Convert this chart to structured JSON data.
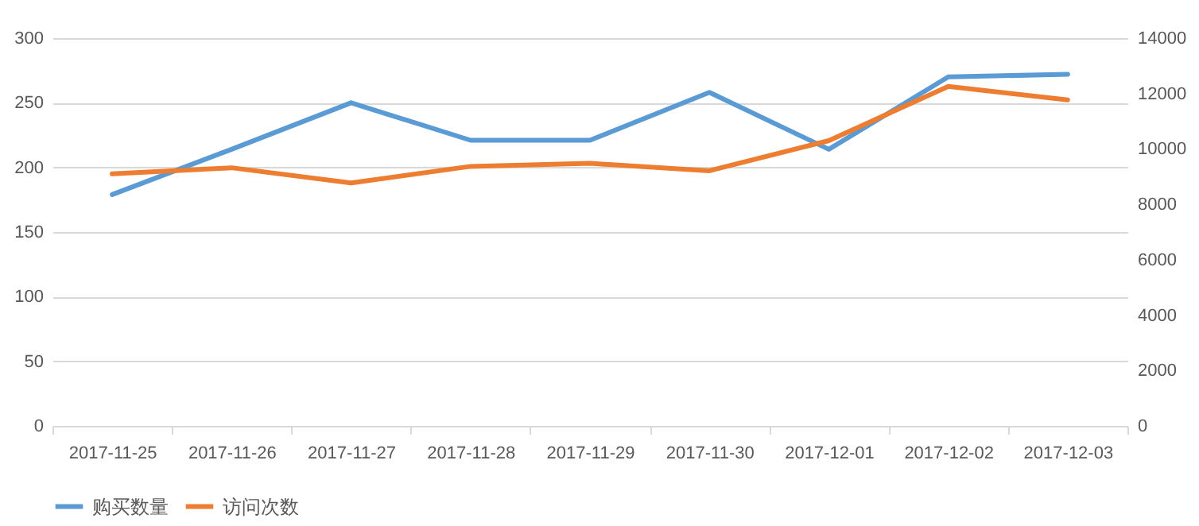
{
  "chart_data": {
    "type": "line",
    "categories": [
      "2017-11-25",
      "2017-11-26",
      "2017-11-27",
      "2017-11-28",
      "2017-11-29",
      "2017-11-30",
      "2017-12-01",
      "2017-12-02",
      "2017-12-03"
    ],
    "series": [
      {
        "name": "购买数量",
        "color": "#5b9bd5",
        "values": [
          179,
          214,
          250,
          221,
          221,
          258,
          214,
          270,
          272
        ]
      },
      {
        "name": "访问次数",
        "color": "#ed7d31",
        "axis": "y2",
        "values": [
          9100,
          9320,
          8770,
          9370,
          9480,
          9210,
          10300,
          12260,
          11770
        ]
      }
    ],
    "ylim": [
      0,
      300
    ],
    "yticks": [
      0,
      50,
      100,
      150,
      200,
      250,
      300
    ],
    "y2lim": [
      0,
      14000
    ],
    "y2ticks": [
      0,
      2000,
      4000,
      6000,
      8000,
      10000,
      12000,
      14000
    ],
    "grid": "y",
    "legend": "bottom",
    "marker": "none",
    "line_style": "solid"
  }
}
